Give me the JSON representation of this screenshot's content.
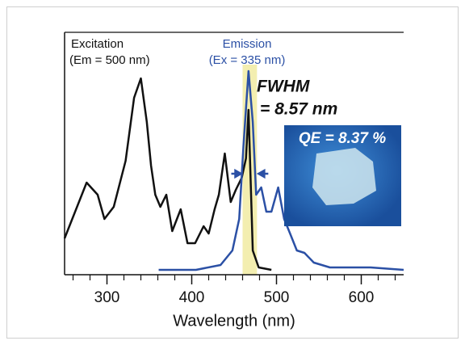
{
  "chart_data": {
    "type": "line",
    "xlabel": "Wavelength (nm)",
    "xlim": [
      250,
      650
    ],
    "xticks": [
      300,
      400,
      500,
      600
    ],
    "xminorticks": [
      260,
      280,
      320,
      340,
      360,
      380,
      420,
      440,
      460,
      480,
      520,
      540,
      560,
      580,
      620,
      640
    ],
    "ylim": [
      0,
      1
    ],
    "highlight": [
      460,
      477
    ],
    "highlight_color": "#f3eeb0",
    "series": [
      {
        "name": "Excitation",
        "note": "(Em = 500 nm)",
        "color": "#111111",
        "x": [
          250,
          276,
          289,
          297,
          308,
          322,
          332,
          340,
          347,
          352,
          357,
          363,
          370,
          377,
          387,
          395,
          404,
          414,
          420,
          427,
          432,
          439,
          446,
          452,
          459,
          464,
          467,
          472,
          479,
          494
        ],
        "values": [
          0.15,
          0.38,
          0.33,
          0.23,
          0.28,
          0.47,
          0.73,
          0.81,
          0.63,
          0.45,
          0.33,
          0.28,
          0.33,
          0.18,
          0.27,
          0.13,
          0.13,
          0.2,
          0.17,
          0.27,
          0.33,
          0.5,
          0.3,
          0.35,
          0.4,
          0.48,
          0.68,
          0.1,
          0.03,
          0.02
        ]
      },
      {
        "name": "Emission",
        "note": "(Ex = 335 nm)",
        "color": "#2b50a5",
        "x": [
          361,
          405,
          434,
          448,
          456,
          461,
          467,
          472,
          476,
          482,
          488,
          494,
          502,
          509,
          516,
          524,
          533,
          544,
          563,
          611,
          650
        ],
        "values": [
          0.02,
          0.02,
          0.04,
          0.1,
          0.23,
          0.53,
          0.84,
          0.63,
          0.33,
          0.36,
          0.26,
          0.26,
          0.36,
          0.23,
          0.17,
          0.1,
          0.09,
          0.05,
          0.03,
          0.03,
          0.02
        ]
      }
    ],
    "annotations": {
      "fwhm": "FWHM",
      "fwhm_value": "= 8.57 nm",
      "qe": "QE = 8.37 %"
    }
  }
}
